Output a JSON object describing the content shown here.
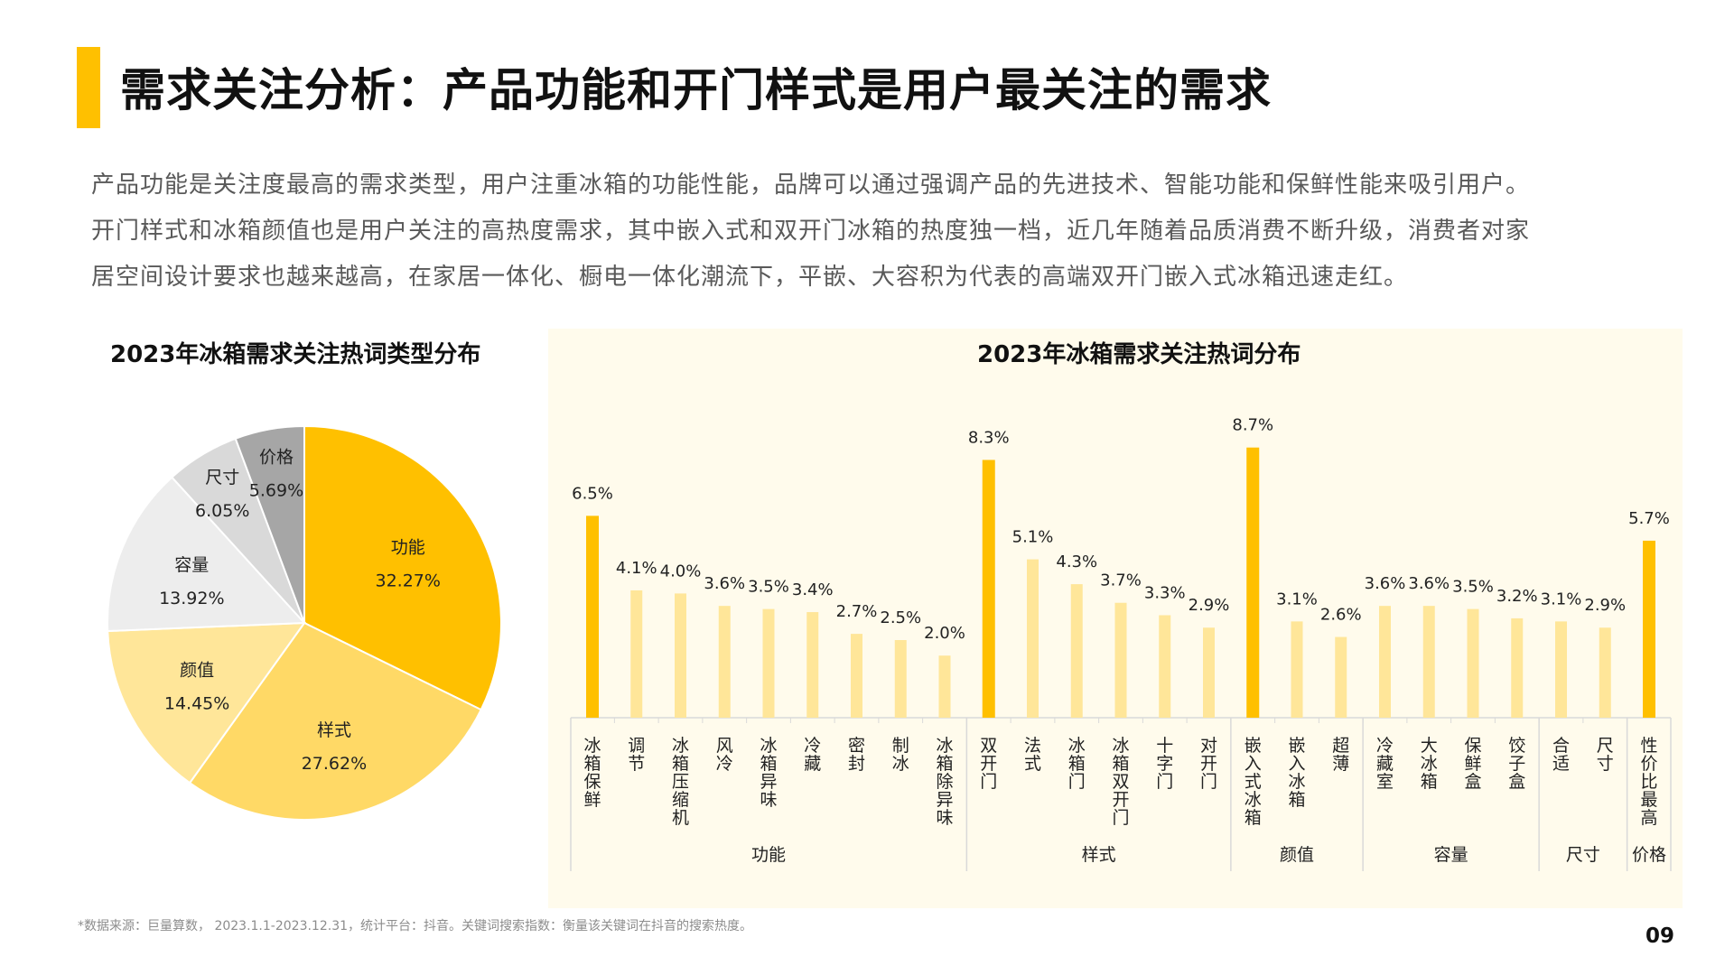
{
  "title": "需求关注分析：产品功能和开门样式是用户最关注的需求",
  "intro": [
    "产品功能是关注度最高的需求类型，用户注重冰箱的功能性能，品牌可以通过强调产品的先进技术、智能功能和保鲜性能来吸引用户。",
    "开门样式和冰箱颜值也是用户关注的高热度需求，其中嵌入式和双开门冰箱的热度独一档，近几年随着品质消费不断升级，消费者对家",
    "居空间设计要求也越来越高，在家居一体化、橱电一体化潮流下，平嵌、大容积为代表的高端双开门嵌入式冰箱迅速走红。"
  ],
  "footnote": "*数据来源：巨量算数， 2023.1.1-2023.12.31，统计平台：抖音。关键词搜索指数：衡量该关键词在抖音的搜索热度。",
  "page_number": "09",
  "chart_data": [
    {
      "type": "pie",
      "title": "2023年冰箱需求关注热词类型分布",
      "slices": [
        {
          "label": "功能",
          "value": 32.27,
          "value_label": "32.27%",
          "color": "#FFC000"
        },
        {
          "label": "样式",
          "value": 27.62,
          "value_label": "27.62%",
          "color": "#FFD966"
        },
        {
          "label": "颜值",
          "value": 14.45,
          "value_label": "14.45%",
          "color": "#FFE699"
        },
        {
          "label": "容量",
          "value": 13.92,
          "value_label": "13.92%",
          "color": "#EDEDED"
        },
        {
          "label": "尺寸",
          "value": 6.05,
          "value_label": "6.05%",
          "color": "#D9D9D9"
        },
        {
          "label": "价格",
          "value": 5.69,
          "value_label": "5.69%",
          "color": "#A6A6A6"
        }
      ]
    },
    {
      "type": "bar",
      "title": "2023年冰箱需求关注热词分布",
      "ylim": [
        0,
        10
      ],
      "colors": {
        "highlight": "#FFC000",
        "normal": "#FFE699"
      },
      "groups": [
        {
          "name": "功能",
          "items": [
            {
              "label": "冰箱保鲜",
              "value": 6.5,
              "value_label": "6.5%",
              "highlight": true
            },
            {
              "label": "调节",
              "value": 4.1,
              "value_label": "4.1%"
            },
            {
              "label": "冰箱压缩机",
              "value": 4.0,
              "value_label": "4.0%"
            },
            {
              "label": "风冷",
              "value": 3.6,
              "value_label": "3.6%"
            },
            {
              "label": "冰箱异味",
              "value": 3.5,
              "value_label": "3.5%"
            },
            {
              "label": "冷藏",
              "value": 3.4,
              "value_label": "3.4%"
            },
            {
              "label": "密封",
              "value": 2.7,
              "value_label": "2.7%"
            },
            {
              "label": "制冰",
              "value": 2.5,
              "value_label": "2.5%"
            },
            {
              "label": "冰箱除异味",
              "value": 2.0,
              "value_label": "2.0%"
            }
          ]
        },
        {
          "name": "样式",
          "items": [
            {
              "label": "双开门",
              "value": 8.3,
              "value_label": "8.3%",
              "highlight": true
            },
            {
              "label": "法式",
              "value": 5.1,
              "value_label": "5.1%"
            },
            {
              "label": "冰箱门",
              "value": 4.3,
              "value_label": "4.3%"
            },
            {
              "label": "冰箱双开门",
              "value": 3.7,
              "value_label": "3.7%"
            },
            {
              "label": "十字门",
              "value": 3.3,
              "value_label": "3.3%"
            },
            {
              "label": "对开门",
              "value": 2.9,
              "value_label": "2.9%"
            }
          ]
        },
        {
          "name": "颜值",
          "items": [
            {
              "label": "嵌入式冰箱",
              "value": 8.7,
              "value_label": "8.7%",
              "highlight": true
            },
            {
              "label": "嵌入冰箱",
              "value": 3.1,
              "value_label": "3.1%"
            },
            {
              "label": "超薄",
              "value": 2.6,
              "value_label": "2.6%"
            }
          ]
        },
        {
          "name": "容量",
          "items": [
            {
              "label": "冷藏室",
              "value": 3.6,
              "value_label": "3.6%"
            },
            {
              "label": "大冰箱",
              "value": 3.6,
              "value_label": "3.6%"
            },
            {
              "label": "保鲜盒",
              "value": 3.5,
              "value_label": "3.5%"
            },
            {
              "label": "饺子盒",
              "value": 3.2,
              "value_label": "3.2%"
            }
          ]
        },
        {
          "name": "尺寸",
          "items": [
            {
              "label": "合适",
              "value": 3.1,
              "value_label": "3.1%"
            },
            {
              "label": "尺寸",
              "value": 2.9,
              "value_label": "2.9%"
            }
          ]
        },
        {
          "name": "价格",
          "items": [
            {
              "label": "性价比最高",
              "value": 5.7,
              "value_label": "5.7%",
              "highlight": true
            }
          ]
        }
      ]
    }
  ]
}
